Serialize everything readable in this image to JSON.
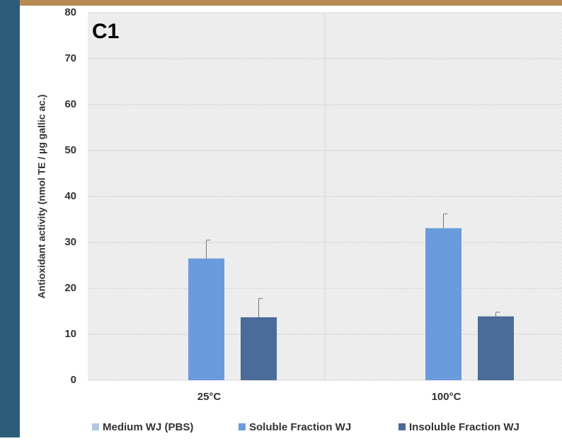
{
  "chart_data": {
    "type": "bar",
    "panel_label": "C1",
    "y_label": "Antioxidant activity (nmol TE / µg gallic ac.)",
    "categories": [
      "25°C",
      "100°C"
    ],
    "series": [
      {
        "name": "Medium WJ (PBS)",
        "color": "#b4c7e7",
        "values": [
          0,
          0
        ],
        "errors": [
          0,
          0
        ]
      },
      {
        "name": "Soluble Fraction WJ",
        "color": "#6a9bdc",
        "values": [
          26.5,
          33.1
        ],
        "errors": [
          4,
          3.1
        ]
      },
      {
        "name": "Insoluble Fraction WJ",
        "color": "#4b6b98",
        "values": [
          13.7,
          13.9
        ],
        "errors": [
          4.1,
          0.9
        ]
      }
    ],
    "ylim": [
      0,
      80
    ],
    "yticks": [
      0,
      10,
      20,
      30,
      40,
      50,
      60,
      70,
      80
    ],
    "grid": true
  }
}
